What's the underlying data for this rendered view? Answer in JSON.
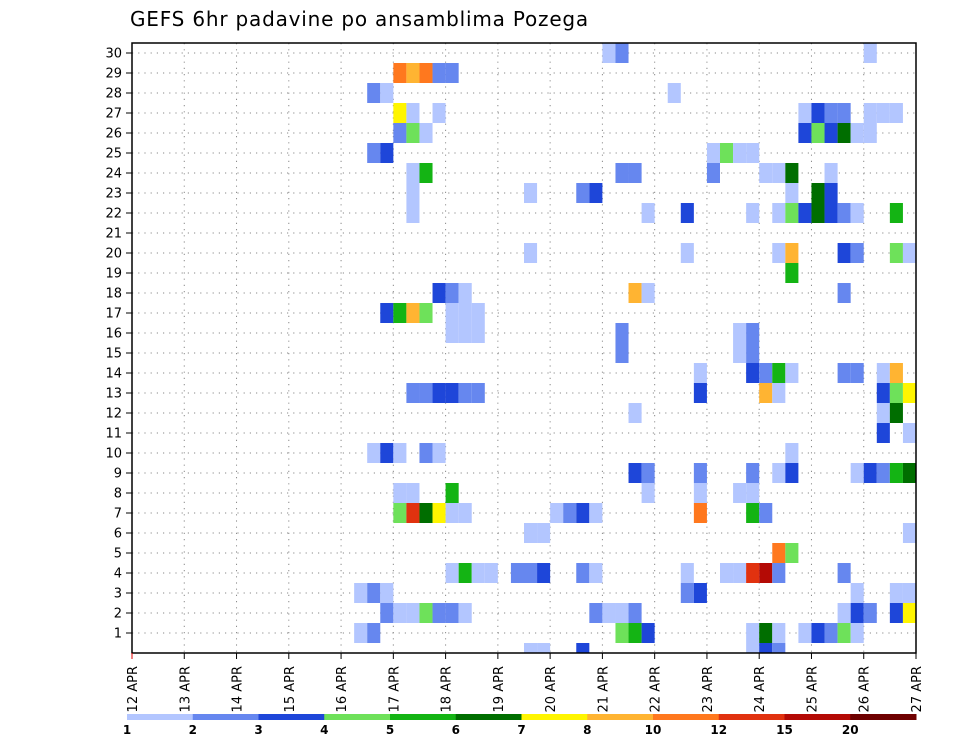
{
  "chart_data": {
    "type": "heatmap",
    "title": "GEFS 6hr padavine po ansamblima Pozega",
    "xlabel": "",
    "ylabel": "",
    "x_ticks": [
      "12 APR",
      "13 APR",
      "14 APR",
      "15 APR",
      "16 APR",
      "17 APR",
      "18 APR",
      "19 APR",
      "20 APR",
      "21 APR",
      "22 APR",
      "23 APR",
      "24 APR",
      "25 APR",
      "26 APR",
      "27 APR"
    ],
    "y_ticks": [
      "1",
      "2",
      "3",
      "4",
      "5",
      "6",
      "7",
      "8",
      "9",
      "10",
      "11",
      "12",
      "13",
      "14",
      "15",
      "16",
      "17",
      "18",
      "19",
      "20",
      "21",
      "22",
      "23",
      "24",
      "25",
      "26",
      "27",
      "28",
      "29",
      "30"
    ],
    "x_range": [
      "12 APR",
      "27 APR"
    ],
    "y_range": [
      0,
      30
    ],
    "grid": true,
    "colorbar": {
      "labels": [
        "1",
        "2",
        "3",
        "4",
        "5",
        "6",
        "7",
        "8",
        "10",
        "12",
        "15",
        "20"
      ],
      "colors": [
        "#b3c6ff",
        "#6687ef",
        "#1e46d9",
        "#6ee15a",
        "#14b414",
        "#006e00",
        "#fff500",
        "#ffb432",
        "#ff781e",
        "#e1320f",
        "#b40a05",
        "#6e0000"
      ]
    },
    "cells": [
      [
        "21 APR 00Z",
        30,
        1
      ],
      [
        "21 APR 06Z",
        30,
        2
      ],
      [
        "26 APR 00Z",
        30,
        1
      ],
      [
        "17 APR 00Z",
        29,
        10
      ],
      [
        "17 APR 06Z",
        29,
        8
      ],
      [
        "17 APR 12Z",
        29,
        10
      ],
      [
        "17 APR 18Z",
        29,
        2
      ],
      [
        "18 APR 00Z",
        29,
        2
      ],
      [
        "16 APR 12Z",
        28,
        2
      ],
      [
        "16 APR 18Z",
        28,
        1
      ],
      [
        "22 APR 06Z",
        28,
        1
      ],
      [
        "17 APR 00Z",
        27,
        7
      ],
      [
        "17 APR 06Z",
        27,
        1
      ],
      [
        "17 APR 18Z",
        27,
        1
      ],
      [
        "24 APR 18Z",
        27,
        1
      ],
      [
        "25 APR 00Z",
        27,
        3
      ],
      [
        "25 APR 06Z",
        27,
        2
      ],
      [
        "25 APR 12Z",
        27,
        2
      ],
      [
        "26 APR 00Z",
        27,
        1
      ],
      [
        "26 APR 06Z",
        27,
        1
      ],
      [
        "26 APR 12Z",
        27,
        1
      ],
      [
        "17 APR 00Z",
        26,
        2
      ],
      [
        "17 APR 06Z",
        26,
        4
      ],
      [
        "17 APR 12Z",
        26,
        1
      ],
      [
        "24 APR 18Z",
        26,
        3
      ],
      [
        "25 APR 00Z",
        26,
        4
      ],
      [
        "25 APR 06Z",
        26,
        3
      ],
      [
        "25 APR 12Z",
        26,
        6
      ],
      [
        "25 APR 18Z",
        26,
        1
      ],
      [
        "26 APR 00Z",
        26,
        1
      ],
      [
        "16 APR 12Z",
        25,
        2
      ],
      [
        "16 APR 18Z",
        25,
        3
      ],
      [
        "23 APR 00Z",
        25,
        1
      ],
      [
        "23 APR 06Z",
        25,
        4
      ],
      [
        "23 APR 12Z",
        25,
        1
      ],
      [
        "23 APR 18Z",
        25,
        1
      ],
      [
        "17 APR 06Z",
        24,
        1
      ],
      [
        "17 APR 12Z",
        24,
        5
      ],
      [
        "21 APR 06Z",
        24,
        2
      ],
      [
        "21 APR 12Z",
        24,
        2
      ],
      [
        "23 APR 00Z",
        24,
        2
      ],
      [
        "24 APR 00Z",
        24,
        1
      ],
      [
        "24 APR 06Z",
        24,
        1
      ],
      [
        "24 APR 12Z",
        24,
        6
      ],
      [
        "25 APR 06Z",
        24,
        1
      ],
      [
        "17 APR 06Z",
        23,
        1
      ],
      [
        "19 APR 12Z",
        23,
        1
      ],
      [
        "20 APR 12Z",
        23,
        2
      ],
      [
        "20 APR 18Z",
        23,
        3
      ],
      [
        "24 APR 12Z",
        23,
        1
      ],
      [
        "25 APR 00Z",
        23,
        6
      ],
      [
        "25 APR 06Z",
        23,
        3
      ],
      [
        "17 APR 06Z",
        22,
        1
      ],
      [
        "21 APR 18Z",
        22,
        1
      ],
      [
        "22 APR 12Z",
        22,
        3
      ],
      [
        "23 APR 18Z",
        22,
        1
      ],
      [
        "24 APR 06Z",
        22,
        1
      ],
      [
        "24 APR 12Z",
        22,
        4
      ],
      [
        "24 APR 18Z",
        22,
        3
      ],
      [
        "25 APR 00Z",
        22,
        6
      ],
      [
        "25 APR 06Z",
        22,
        3
      ],
      [
        "25 APR 12Z",
        22,
        2
      ],
      [
        "25 APR 18Z",
        22,
        1
      ],
      [
        "26 APR 12Z",
        22,
        5
      ],
      [
        "19 APR 12Z",
        20,
        1
      ],
      [
        "22 APR 12Z",
        20,
        1
      ],
      [
        "24 APR 06Z",
        20,
        1
      ],
      [
        "24 APR 12Z",
        20,
        8
      ],
      [
        "25 APR 12Z",
        20,
        3
      ],
      [
        "25 APR 18Z",
        20,
        2
      ],
      [
        "26 APR 12Z",
        20,
        4
      ],
      [
        "26 APR 18Z",
        20,
        1
      ],
      [
        "24 APR 12Z",
        19,
        5
      ],
      [
        "17 APR 18Z",
        18,
        3
      ],
      [
        "18 APR 00Z",
        18,
        2
      ],
      [
        "18 APR 06Z",
        18,
        1
      ],
      [
        "21 APR 12Z",
        18,
        8
      ],
      [
        "21 APR 18Z",
        18,
        1
      ],
      [
        "25 APR 12Z",
        18,
        2
      ],
      [
        "16 APR 18Z",
        17,
        3
      ],
      [
        "17 APR 00Z",
        17,
        5
      ],
      [
        "17 APR 06Z",
        17,
        8
      ],
      [
        "17 APR 12Z",
        17,
        4
      ],
      [
        "18 APR 00Z",
        17,
        1
      ],
      [
        "18 APR 06Z",
        17,
        1
      ],
      [
        "18 APR 12Z",
        17,
        1
      ],
      [
        "18 APR 00Z",
        16,
        1
      ],
      [
        "18 APR 06Z",
        16,
        1
      ],
      [
        "18 APR 12Z",
        16,
        1
      ],
      [
        "21 APR 06Z",
        16,
        2
      ],
      [
        "23 APR 12Z",
        16,
        1
      ],
      [
        "23 APR 18Z",
        16,
        2
      ],
      [
        "21 APR 06Z",
        15,
        2
      ],
      [
        "23 APR 12Z",
        15,
        1
      ],
      [
        "23 APR 18Z",
        15,
        2
      ],
      [
        "22 APR 18Z",
        14,
        1
      ],
      [
        "23 APR 18Z",
        14,
        3
      ],
      [
        "24 APR 00Z",
        14,
        2
      ],
      [
        "24 APR 06Z",
        14,
        5
      ],
      [
        "24 APR 12Z",
        14,
        1
      ],
      [
        "25 APR 12Z",
        14,
        2
      ],
      [
        "25 APR 18Z",
        14,
        2
      ],
      [
        "26 APR 06Z",
        14,
        1
      ],
      [
        "26 APR 12Z",
        14,
        8
      ],
      [
        "17 APR 06Z",
        13,
        2
      ],
      [
        "17 APR 12Z",
        13,
        2
      ],
      [
        "17 APR 18Z",
        13,
        3
      ],
      [
        "18 APR 00Z",
        13,
        3
      ],
      [
        "18 APR 06Z",
        13,
        2
      ],
      [
        "18 APR 12Z",
        13,
        2
      ],
      [
        "22 APR 18Z",
        13,
        3
      ],
      [
        "24 APR 00Z",
        13,
        8
      ],
      [
        "24 APR 06Z",
        13,
        1
      ],
      [
        "26 APR 06Z",
        13,
        3
      ],
      [
        "26 APR 12Z",
        13,
        4
      ],
      [
        "26 APR 18Z",
        13,
        7
      ],
      [
        "21 APR 12Z",
        12,
        1
      ],
      [
        "26 APR 06Z",
        12,
        1
      ],
      [
        "26 APR 12Z",
        12,
        6
      ],
      [
        "26 APR 06Z",
        11,
        3
      ],
      [
        "26 APR 18Z",
        11,
        1
      ],
      [
        "16 APR 12Z",
        10,
        1
      ],
      [
        "16 APR 18Z",
        10,
        3
      ],
      [
        "17 APR 00Z",
        10,
        1
      ],
      [
        "17 APR 12Z",
        10,
        2
      ],
      [
        "17 APR 18Z",
        10,
        1
      ],
      [
        "24 APR 12Z",
        10,
        1
      ],
      [
        "21 APR 12Z",
        9,
        3
      ],
      [
        "21 APR 18Z",
        9,
        2
      ],
      [
        "22 APR 18Z",
        9,
        2
      ],
      [
        "23 APR 18Z",
        9,
        2
      ],
      [
        "24 APR 06Z",
        9,
        1
      ],
      [
        "24 APR 12Z",
        9,
        3
      ],
      [
        "25 APR 18Z",
        9,
        1
      ],
      [
        "26 APR 00Z",
        9,
        3
      ],
      [
        "26 APR 06Z",
        9,
        2
      ],
      [
        "26 APR 12Z",
        9,
        5
      ],
      [
        "26 APR 18Z",
        9,
        6
      ],
      [
        "27 APR 00Z",
        9,
        10
      ],
      [
        "17 APR 00Z",
        8,
        1
      ],
      [
        "17 APR 06Z",
        8,
        1
      ],
      [
        "18 APR 00Z",
        8,
        5
      ],
      [
        "21 APR 18Z",
        8,
        1
      ],
      [
        "22 APR 18Z",
        8,
        1
      ],
      [
        "23 APR 12Z",
        8,
        1
      ],
      [
        "23 APR 18Z",
        8,
        1
      ],
      [
        "17 APR 00Z",
        7,
        4
      ],
      [
        "17 APR 06Z",
        7,
        12
      ],
      [
        "17 APR 12Z",
        7,
        6
      ],
      [
        "17 APR 18Z",
        7,
        7
      ],
      [
        "18 APR 00Z",
        7,
        1
      ],
      [
        "18 APR 06Z",
        7,
        1
      ],
      [
        "20 APR 00Z",
        7,
        1
      ],
      [
        "20 APR 06Z",
        7,
        2
      ],
      [
        "20 APR 12Z",
        7,
        3
      ],
      [
        "20 APR 18Z",
        7,
        1
      ],
      [
        "22 APR 18Z",
        7,
        10
      ],
      [
        "23 APR 18Z",
        7,
        5
      ],
      [
        "24 APR 00Z",
        7,
        2
      ],
      [
        "19 APR 12Z",
        6,
        1
      ],
      [
        "19 APR 18Z",
        6,
        1
      ],
      [
        "26 APR 18Z",
        6,
        1
      ],
      [
        "24 APR 06Z",
        5,
        10
      ],
      [
        "24 APR 12Z",
        5,
        4
      ],
      [
        "18 APR 00Z",
        4,
        1
      ],
      [
        "18 APR 06Z",
        4,
        5
      ],
      [
        "18 APR 12Z",
        4,
        1
      ],
      [
        "18 APR 18Z",
        4,
        1
      ],
      [
        "19 APR 06Z",
        4,
        2
      ],
      [
        "19 APR 12Z",
        4,
        2
      ],
      [
        "19 APR 18Z",
        4,
        3
      ],
      [
        "20 APR 12Z",
        4,
        2
      ],
      [
        "20 APR 18Z",
        4,
        1
      ],
      [
        "22 APR 12Z",
        4,
        1
      ],
      [
        "23 APR 06Z",
        4,
        1
      ],
      [
        "23 APR 12Z",
        4,
        1
      ],
      [
        "23 APR 18Z",
        4,
        12
      ],
      [
        "24 APR 00Z",
        4,
        15
      ],
      [
        "24 APR 06Z",
        4,
        2
      ],
      [
        "25 APR 12Z",
        4,
        2
      ],
      [
        "16 APR 06Z",
        3,
        1
      ],
      [
        "16 APR 12Z",
        3,
        2
      ],
      [
        "16 APR 18Z",
        3,
        1
      ],
      [
        "22 APR 12Z",
        3,
        2
      ],
      [
        "22 APR 18Z",
        3,
        3
      ],
      [
        "25 APR 18Z",
        3,
        1
      ],
      [
        "26 APR 12Z",
        3,
        1
      ],
      [
        "26 APR 18Z",
        3,
        1
      ],
      [
        "16 APR 18Z",
        2,
        2
      ],
      [
        "17 APR 00Z",
        2,
        1
      ],
      [
        "17 APR 06Z",
        2,
        1
      ],
      [
        "17 APR 12Z",
        2,
        4
      ],
      [
        "17 APR 18Z",
        2,
        2
      ],
      [
        "18 APR 00Z",
        2,
        2
      ],
      [
        "18 APR 06Z",
        2,
        1
      ],
      [
        "20 APR 18Z",
        2,
        2
      ],
      [
        "21 APR 00Z",
        2,
        1
      ],
      [
        "21 APR 06Z",
        2,
        1
      ],
      [
        "21 APR 12Z",
        2,
        2
      ],
      [
        "25 APR 12Z",
        2,
        1
      ],
      [
        "25 APR 18Z",
        2,
        3
      ],
      [
        "26 APR 00Z",
        2,
        2
      ],
      [
        "26 APR 12Z",
        2,
        3
      ],
      [
        "26 APR 18Z",
        2,
        7
      ],
      [
        "16 APR 06Z",
        1,
        1
      ],
      [
        "16 APR 12Z",
        1,
        2
      ],
      [
        "21 APR 06Z",
        1,
        4
      ],
      [
        "21 APR 12Z",
        1,
        5
      ],
      [
        "21 APR 18Z",
        1,
        3
      ],
      [
        "23 APR 18Z",
        1,
        1
      ],
      [
        "24 APR 00Z",
        1,
        6
      ],
      [
        "24 APR 06Z",
        1,
        1
      ],
      [
        "24 APR 18Z",
        1,
        1
      ],
      [
        "25 APR 00Z",
        1,
        3
      ],
      [
        "25 APR 06Z",
        1,
        2
      ],
      [
        "25 APR 12Z",
        1,
        4
      ],
      [
        "25 APR 18Z",
        1,
        1
      ],
      [
        "19 APR 12Z",
        0,
        1
      ],
      [
        "19 APR 18Z",
        0,
        1
      ],
      [
        "20 APR 12Z",
        0,
        3
      ],
      [
        "23 APR 18Z",
        0,
        1
      ],
      [
        "24 APR 00Z",
        0,
        3
      ],
      [
        "24 APR 06Z",
        0,
        2
      ]
    ]
  }
}
